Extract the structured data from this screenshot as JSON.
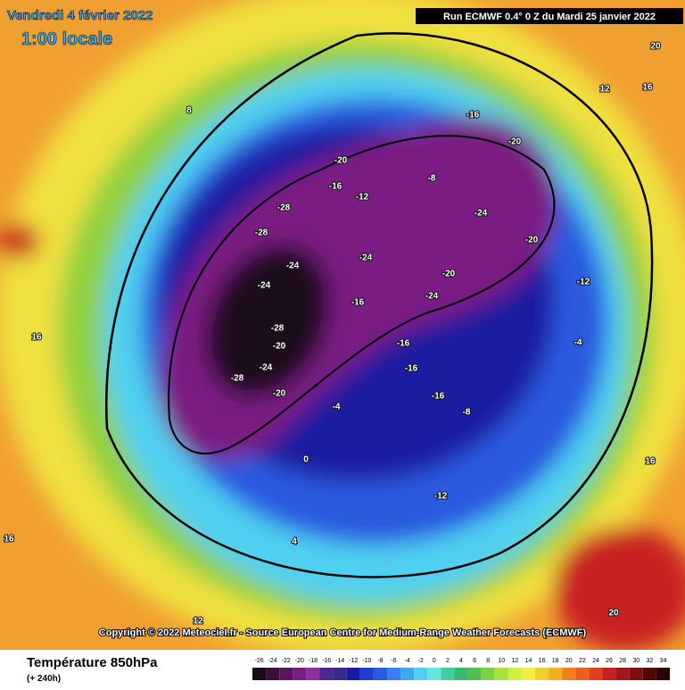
{
  "header": {
    "date": "Vendredi 4 février 2022",
    "time": "1:00 locale",
    "run": "Run ECMWF 0.4° 0 Z du Mardi 25 janvier 2022"
  },
  "copyright": "Copyright © 2022 Meteociel.fr - Source European Centre for Medium-Range Weather Forecasts (ECMWF)",
  "footer": {
    "title": "Température 850hPa",
    "lead": "(+ 240h)"
  },
  "colorbar": {
    "ticks": [
      -26,
      -24,
      -22,
      -20,
      -18,
      -16,
      -14,
      -12,
      -10,
      -8,
      -6,
      -4,
      -2,
      0,
      2,
      4,
      6,
      8,
      10,
      12,
      14,
      16,
      18,
      20,
      22,
      24,
      26,
      28,
      30,
      32,
      34
    ],
    "colors": [
      "#1a0a1a",
      "#3a0f3a",
      "#5a1560",
      "#7a1f82",
      "#8e2fa0",
      "#4a2a90",
      "#3a2a8a",
      "#1a1aa0",
      "#1f3dd0",
      "#2a5ae0",
      "#3a7ff0",
      "#40a8f0",
      "#50d0f0",
      "#60e8e0",
      "#40d0a0",
      "#3ab870",
      "#50c050",
      "#80d040",
      "#a8e040",
      "#d0f040",
      "#f0f040",
      "#f0d030",
      "#f0b020",
      "#f08020",
      "#e86020",
      "#e04020",
      "#c82020",
      "#a01818",
      "#801010",
      "#500808",
      "#300000"
    ]
  },
  "contour_labels": [
    -28,
    -28,
    -24,
    -24,
    -28,
    -20,
    -24,
    -28,
    -20,
    -20,
    -16,
    -12,
    -8,
    -16,
    -20,
    -24,
    -20,
    -24,
    -20,
    -24,
    -16,
    -16,
    -16,
    -16,
    -12,
    -8,
    -4,
    0,
    4,
    8,
    12,
    16,
    20,
    -12,
    -4,
    16,
    16,
    12,
    20,
    16
  ]
}
